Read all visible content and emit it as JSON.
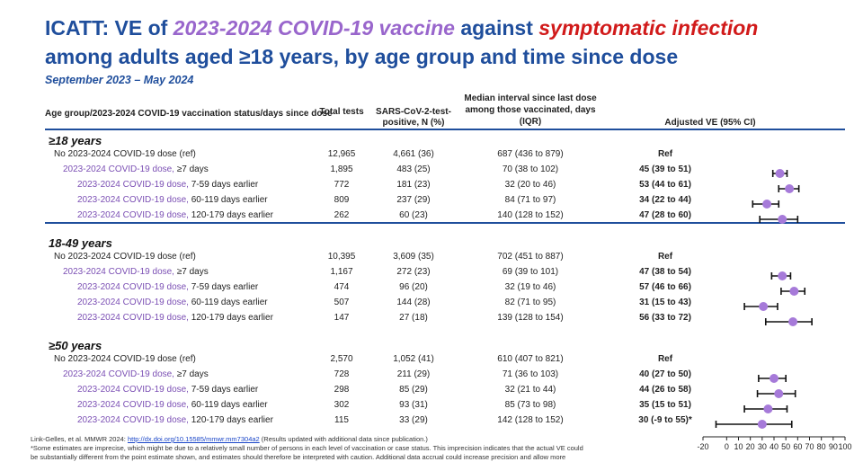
{
  "title": {
    "part1": "ICATT: VE of ",
    "part2": "2023-2024 COVID-19 vaccine",
    "part3": " against ",
    "part4": "symptomatic infection",
    "line2": "among adults aged ≥18 years, by age group and time since dose",
    "subtitle": "September 2023 – May 2024"
  },
  "headers": {
    "group_status": "Age group/2023-2024 COVID-19 vaccination status/days since dose",
    "total_tests": "Total tests",
    "positive": "SARS-CoV-2-test-positive, N (%)",
    "median_interval": "Median interval since last dose among those vaccinated, days (IQR)",
    "adjusted_ve": "Adjusted VE (95% CI)"
  },
  "rows": [
    {
      "type": "group",
      "label": "≥18 years"
    },
    {
      "type": "data",
      "indent": 1,
      "vaccine": "",
      "label": "No 2023-2024 COVID-19 dose (ref)",
      "tests": "12,965",
      "pos": "4,661 (36)",
      "median": "687 (436 to 879)",
      "ve": "Ref"
    },
    {
      "type": "data",
      "indent": 1,
      "vaccine": "2023-2024 COVID-19 dose,",
      "label": " ≥7 days",
      "tests": "1,895",
      "pos": "483 (25)",
      "median": "70 (38 to 102)",
      "ve": "45 (39 to 51)"
    },
    {
      "type": "data",
      "indent": 2,
      "vaccine": "2023-2024 COVID-19 dose,",
      "label": " 7-59 days earlier",
      "tests": "772",
      "pos": "181 (23)",
      "median": "32 (20 to 46)",
      "ve": "53 (44 to 61)"
    },
    {
      "type": "data",
      "indent": 2,
      "vaccine": "2023-2024 COVID-19 dose,",
      "label": " 60-119 days earlier",
      "tests": "809",
      "pos": "237 (29)",
      "median": "84 (71 to 97)",
      "ve": "34 (22 to 44)"
    },
    {
      "type": "data",
      "indent": 2,
      "vaccine": "2023-2024 COVID-19 dose,",
      "label": " 120-179 days earlier",
      "tests": "262",
      "pos": "60 (23)",
      "median": "140 (128 to 152)",
      "ve": "47 (28 to 60)"
    },
    {
      "type": "group",
      "label": "18-49 years"
    },
    {
      "type": "data",
      "indent": 1,
      "vaccine": "",
      "label": "No 2023-2024 COVID-19 dose (ref)",
      "tests": "10,395",
      "pos": "3,609 (35)",
      "median": "702 (451 to 887)",
      "ve": "Ref"
    },
    {
      "type": "data",
      "indent": 1,
      "vaccine": "2023-2024 COVID-19 dose,",
      "label": " ≥7 days",
      "tests": "1,167",
      "pos": "272 (23)",
      "median": "69 (39 to 101)",
      "ve": "47 (38 to 54)"
    },
    {
      "type": "data",
      "indent": 2,
      "vaccine": "2023-2024 COVID-19 dose,",
      "label": " 7-59 days earlier",
      "tests": "474",
      "pos": "96 (20)",
      "median": "32 (19 to 46)",
      "ve": "57 (46 to 66)"
    },
    {
      "type": "data",
      "indent": 2,
      "vaccine": "2023-2024 COVID-19 dose,",
      "label": " 60-119 days earlier",
      "tests": "507",
      "pos": "144 (28)",
      "median": "82 (71 to 95)",
      "ve": "31 (15 to 43)"
    },
    {
      "type": "data",
      "indent": 2,
      "vaccine": "2023-2024 COVID-19 dose,",
      "label": " 120-179 days earlier",
      "tests": "147",
      "pos": "27 (18)",
      "median": "139 (128 to 154)",
      "ve": "56 (33 to 72)"
    },
    {
      "type": "group",
      "label": "≥50 years"
    },
    {
      "type": "data",
      "indent": 1,
      "vaccine": "",
      "label": "No 2023-2024 COVID-19 dose (ref)",
      "tests": "2,570",
      "pos": "1,052 (41)",
      "median": "610 (407 to 821)",
      "ve": "Ref"
    },
    {
      "type": "data",
      "indent": 1,
      "vaccine": "2023-2024 COVID-19 dose,",
      "label": " ≥7 days",
      "tests": "728",
      "pos": "211 (29)",
      "median": "71 (36 to 103)",
      "ve": "40 (27 to 50)"
    },
    {
      "type": "data",
      "indent": 2,
      "vaccine": "2023-2024 COVID-19 dose,",
      "label": " 7-59 days earlier",
      "tests": "298",
      "pos": "85 (29)",
      "median": "32 (21 to 44)",
      "ve": "44 (26 to 58)"
    },
    {
      "type": "data",
      "indent": 2,
      "vaccine": "2023-2024 COVID-19 dose,",
      "label": " 60-119 days earlier",
      "tests": "302",
      "pos": "93 (31)",
      "median": "85 (73 to 98)",
      "ve": "35 (15 to 51)"
    },
    {
      "type": "data",
      "indent": 2,
      "vaccine": "2023-2024 COVID-19 dose,",
      "label": " 120-179 days earlier",
      "tests": "115",
      "pos": "33 (29)",
      "median": "142 (128 to 152)",
      "ve": "30 (-9 to 55)*"
    }
  ],
  "footnote": {
    "line1_prefix": "Link-Gelles, et al. MMWR 2024: ",
    "line1_link": "http://dx.doi.org/10.15585/mmwr.mm7304a2",
    "line1_suffix": " (Results updated with additional data since publication.)",
    "line2": "*Some estimates are imprecise, which might be due to a relatively small number of persons in each level of vaccination or case status. This imprecision indicates that the actual VE could",
    "line3": "be substantially different from the point estimate shown, and estimates should therefore be interpreted with caution. Additional data accrual could increase precision and allow more"
  },
  "colors": {
    "title_blue": "#1f4e9c",
    "highlight_purple": "#9966cc",
    "highlight_red": "#d11a1a",
    "vaccine_text_purple": "#7b4fb4",
    "marker_purple": "#a67ad9",
    "error_bar": "#111111"
  },
  "chart_data": {
    "type": "forest",
    "xlim": [
      -20,
      100
    ],
    "x_ticks": [
      -20,
      0,
      10,
      20,
      30,
      40,
      50,
      60,
      70,
      80,
      90,
      100
    ],
    "estimates": [
      {
        "group": "≥18 years",
        "label": "≥7 days",
        "ve": 45,
        "lo": 39,
        "hi": 51
      },
      {
        "group": "≥18 years",
        "label": "7-59 days earlier",
        "ve": 53,
        "lo": 44,
        "hi": 61
      },
      {
        "group": "≥18 years",
        "label": "60-119 days earlier",
        "ve": 34,
        "lo": 22,
        "hi": 44
      },
      {
        "group": "≥18 years",
        "label": "120-179 days earlier",
        "ve": 47,
        "lo": 28,
        "hi": 60
      },
      {
        "group": "18-49 years",
        "label": "≥7 days",
        "ve": 47,
        "lo": 38,
        "hi": 54
      },
      {
        "group": "18-49 years",
        "label": "7-59 days earlier",
        "ve": 57,
        "lo": 46,
        "hi": 66
      },
      {
        "group": "18-49 years",
        "label": "60-119 days earlier",
        "ve": 31,
        "lo": 15,
        "hi": 43
      },
      {
        "group": "18-49 years",
        "label": "120-179 days earlier",
        "ve": 56,
        "lo": 33,
        "hi": 72
      },
      {
        "group": "≥50 years",
        "label": "≥7 days",
        "ve": 40,
        "lo": 27,
        "hi": 50
      },
      {
        "group": "≥50 years",
        "label": "7-59 days earlier",
        "ve": 44,
        "lo": 26,
        "hi": 58
      },
      {
        "group": "≥50 years",
        "label": "60-119 days earlier",
        "ve": 35,
        "lo": 15,
        "hi": 51
      },
      {
        "group": "≥50 years",
        "label": "120-179 days earlier",
        "ve": 30,
        "lo": -9,
        "hi": 55
      }
    ]
  }
}
